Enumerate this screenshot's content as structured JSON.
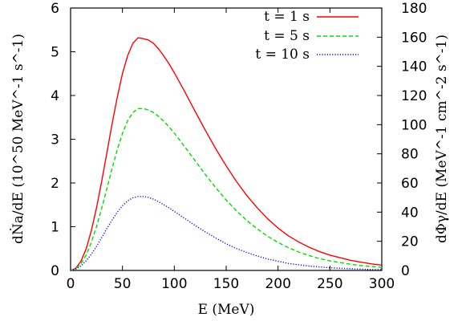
{
  "chart_data": {
    "type": "line",
    "title": "",
    "xlabel": "E (MeV)",
    "ylabel_left": "dṄa/dE (10^50 MeV^-1 s^-1)",
    "ylabel_right": "dΦγ/dE (MeV^-1 cm^-2 s^-1)",
    "xlim": [
      0,
      300
    ],
    "ylim_left": [
      0,
      6
    ],
    "ylim_right": [
      0,
      180
    ],
    "x_ticks": [
      "0",
      "50",
      "100",
      "150",
      "200",
      "250",
      "300"
    ],
    "y_ticks_left": [
      "0",
      "1",
      "2",
      "3",
      "4",
      "5",
      "6"
    ],
    "y_ticks_right": [
      "0",
      "20",
      "40",
      "60",
      "80",
      "100",
      "120",
      "140",
      "160",
      "180"
    ],
    "grid": false,
    "legend_position": "top-right",
    "x": [
      0,
      5,
      10,
      15,
      20,
      25,
      30,
      35,
      40,
      45,
      50,
      55,
      60,
      65,
      70,
      75,
      80,
      85,
      90,
      95,
      100,
      110,
      120,
      130,
      140,
      150,
      160,
      170,
      180,
      190,
      200,
      210,
      220,
      230,
      240,
      250,
      260,
      270,
      280,
      290,
      300
    ],
    "series": [
      {
        "name": "t = 1 s",
        "color": "#ff0000",
        "style": "solid",
        "values": [
          0,
          0.05,
          0.21,
          0.49,
          0.91,
          1.43,
          2.04,
          2.69,
          3.35,
          3.96,
          4.5,
          4.91,
          5.19,
          5.32,
          5.3,
          5.27,
          5.19,
          5.06,
          4.9,
          4.72,
          4.52,
          4.09,
          3.64,
          3.2,
          2.78,
          2.39,
          2.03,
          1.71,
          1.43,
          1.18,
          0.97,
          0.79,
          0.65,
          0.53,
          0.43,
          0.35,
          0.29,
          0.23,
          0.19,
          0.15,
          0.12
        ]
      },
      {
        "name": "t = 5 s",
        "color": "#00dd00",
        "style": "dashed",
        "values": [
          0,
          0.04,
          0.15,
          0.35,
          0.64,
          1.0,
          1.42,
          1.87,
          2.33,
          2.76,
          3.13,
          3.42,
          3.61,
          3.7,
          3.7,
          3.67,
          3.61,
          3.52,
          3.41,
          3.28,
          3.14,
          2.83,
          2.51,
          2.19,
          1.89,
          1.61,
          1.36,
          1.14,
          0.95,
          0.78,
          0.64,
          0.52,
          0.42,
          0.34,
          0.27,
          0.22,
          0.18,
          0.14,
          0.11,
          0.09,
          0.07
        ]
      },
      {
        "name": "t = 10 s",
        "color": "#0000ff",
        "style": "dotted",
        "values": [
          0,
          0.03,
          0.1,
          0.22,
          0.37,
          0.55,
          0.75,
          0.96,
          1.15,
          1.33,
          1.48,
          1.59,
          1.66,
          1.69,
          1.69,
          1.67,
          1.63,
          1.57,
          1.5,
          1.43,
          1.35,
          1.19,
          1.03,
          0.88,
          0.74,
          0.61,
          0.5,
          0.41,
          0.33,
          0.26,
          0.21,
          0.16,
          0.13,
          0.1,
          0.08,
          0.06,
          0.05,
          0.04,
          0.03,
          0.02,
          0.02
        ]
      }
    ]
  }
}
